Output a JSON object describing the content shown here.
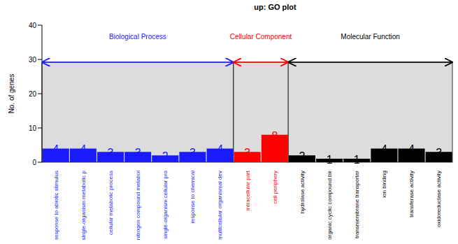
{
  "chart_data": {
    "type": "bar",
    "title": "up: GO plot",
    "y_label": "No. of genes",
    "categories": [
      "response to abiotic stimulus",
      "single-organism metabolic p",
      "cellular metabolic process",
      "nitrogen compound metabol",
      "single-organism cellular pro",
      "response to chemical",
      "multicellular organismal dev",
      "intracellular part",
      "cell periphery",
      "hydrolase activity",
      "organic cyclic compound bir",
      "transmembrane transporter",
      "ion binding",
      "transferase activity",
      "oxidoreductase activity"
    ],
    "series": [
      {
        "name": "Biological Process",
        "color": "#1a1aff",
        "values": [
          4,
          4,
          3,
          3,
          2,
          3,
          4,
          null,
          null,
          null,
          null,
          null,
          null,
          null,
          null
        ]
      },
      {
        "name": "Cellular Component",
        "color": "#ff0000",
        "values": [
          null,
          null,
          null,
          null,
          null,
          null,
          null,
          3,
          8,
          null,
          null,
          null,
          null,
          null,
          null
        ]
      },
      {
        "name": "Molecular Function",
        "color": "#000000",
        "values": [
          null,
          null,
          null,
          null,
          null,
          null,
          null,
          null,
          null,
          2,
          1,
          1,
          4,
          4,
          3
        ]
      }
    ],
    "ylim": [
      0,
      40
    ],
    "yticks": [
      0,
      10,
      20,
      30,
      40
    ],
    "stacked": true,
    "data_labels": true,
    "grid": false
  }
}
